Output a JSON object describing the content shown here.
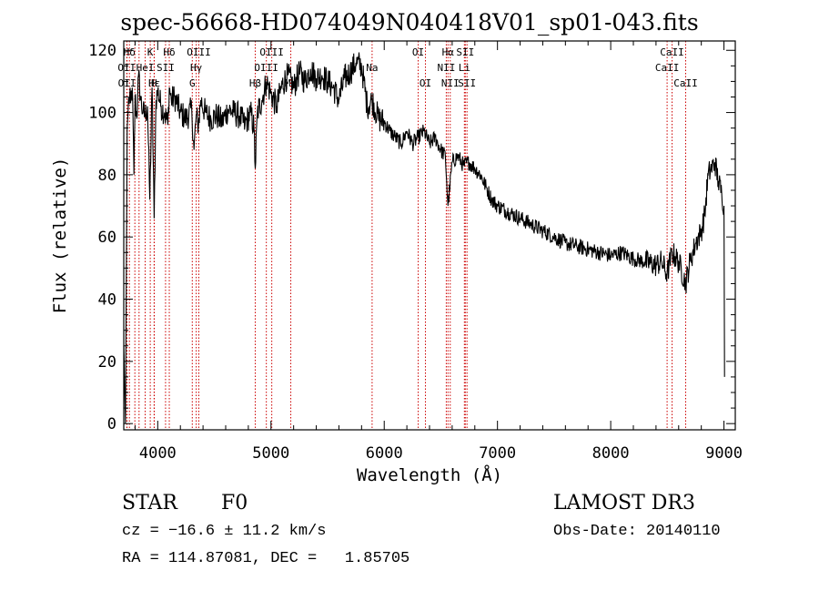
{
  "chart_data": {
    "type": "line",
    "title": "spec-56668-HD074049N040418V01_sp01-043.fits",
    "xlabel": "Wavelength (Å)",
    "ylabel": "Flux (relative)",
    "xlim": [
      3700,
      9100
    ],
    "ylim": [
      -2,
      123
    ],
    "x_ticks": [
      4000,
      5000,
      6000,
      7000,
      8000,
      9000
    ],
    "y_ticks": [
      0,
      20,
      40,
      60,
      80,
      100,
      120
    ],
    "grid": false,
    "series": [
      {
        "x": [
          3700,
          3715,
          3730,
          3745,
          3760,
          3775,
          3790,
          3800,
          3815,
          3830,
          3850,
          3870,
          3890,
          3910,
          3930,
          3950,
          3968,
          3985,
          4000,
          4030,
          4060,
          4090,
          4102,
          4120,
          4150,
          4200,
          4250,
          4300,
          4320,
          4340,
          4360,
          4380,
          4420,
          4470,
          4520,
          4570,
          4620,
          4670,
          4720,
          4770,
          4820,
          4850,
          4861,
          4880,
          4920,
          4960,
          5000,
          5050,
          5100,
          5150,
          5200,
          5250,
          5300,
          5350,
          5400,
          5450,
          5500,
          5550,
          5600,
          5650,
          5700,
          5750,
          5800,
          5850,
          5893,
          5950,
          6000,
          6050,
          6100,
          6150,
          6200,
          6250,
          6300,
          6350,
          6400,
          6450,
          6500,
          6540,
          6563,
          6600,
          6650,
          6700,
          6750,
          6800,
          6850,
          6900,
          6950,
          7000,
          7100,
          7200,
          7300,
          7400,
          7500,
          7600,
          7700,
          7800,
          7900,
          8000,
          8100,
          8200,
          8300,
          8400,
          8450,
          8498,
          8542,
          8600,
          8662,
          8700,
          8750,
          8800,
          8830,
          8860,
          8890,
          8920,
          8950,
          8980,
          9000,
          9005
        ],
        "values": [
          25,
          0,
          95,
          105,
          103,
          108,
          80,
          105,
          98,
          112,
          104,
          100,
          99,
          102,
          72,
          108,
          66,
          104,
          107,
          102,
          100,
          96,
          108,
          104,
          105,
          100,
          98,
          101,
          88,
          99,
          96,
          104,
          100,
          98,
          99,
          97,
          101,
          100,
          99,
          96,
          100,
          95,
          82,
          100,
          104,
          110,
          106,
          102,
          109,
          112,
          108,
          113,
          110,
          114,
          111,
          112,
          110,
          108,
          104,
          111,
          113,
          116,
          115,
          102,
          104,
          98,
          97,
          94,
          92,
          90,
          94,
          90,
          92,
          94,
          90,
          92,
          88,
          86,
          70,
          84,
          86,
          83,
          84,
          82,
          80,
          76,
          72,
          70,
          68,
          66,
          64,
          62,
          60,
          58,
          57,
          56,
          55,
          54,
          55,
          53,
          52,
          51,
          52,
          48,
          55,
          52,
          45,
          52,
          58,
          62,
          67,
          80,
          82,
          84,
          78,
          74,
          70,
          15
        ]
      }
    ],
    "lines": [
      {
        "label": "Hδ",
        "row": 1,
        "x": 3750
      },
      {
        "label": "K",
        "row": 1,
        "x": 3934
      },
      {
        "label": "Hδ",
        "row": 1,
        "x": 4102
      },
      {
        "label": "OIII",
        "row": 1,
        "x": 4363
      },
      {
        "label": "OIII",
        "row": 1,
        "x": 5007
      },
      {
        "label": "OI",
        "row": 1,
        "x": 6300
      },
      {
        "label": "Hα",
        "row": 1,
        "x": 6563
      },
      {
        "label": "SII",
        "row": 1,
        "x": 6716
      },
      {
        "label": "CaII",
        "row": 1,
        "x": 8542
      },
      {
        "label": "OII",
        "row": 2,
        "x": 3727
      },
      {
        "label": "HeI",
        "row": 2,
        "x": 3889
      },
      {
        "label": "SII",
        "row": 2,
        "x": 4069
      },
      {
        "label": "Hγ",
        "row": 2,
        "x": 4340
      },
      {
        "label": "OIII",
        "row": 2,
        "x": 4959
      },
      {
        "label": "Na",
        "row": 2,
        "x": 5893
      },
      {
        "label": "NII",
        "row": 2,
        "x": 6548
      },
      {
        "label": "Li",
        "row": 2,
        "x": 6708
      },
      {
        "label": "CaII",
        "row": 2,
        "x": 8498
      },
      {
        "label": "OII",
        "row": 3,
        "x": 3729
      },
      {
        "label": "Hε",
        "row": 3,
        "x": 3970
      },
      {
        "label": "H",
        "row": 3,
        "x": 3968
      },
      {
        "label": "G",
        "row": 3,
        "x": 4305
      },
      {
        "label": "Hβ",
        "row": 3,
        "x": 4861
      },
      {
        "label": "Mg",
        "row": 3,
        "x": 5175
      },
      {
        "label": "OI",
        "row": 3,
        "x": 6364
      },
      {
        "label": "NII",
        "row": 3,
        "x": 6583
      },
      {
        "label": "SII",
        "row": 3,
        "x": 6731
      },
      {
        "label": "CaII",
        "row": 3,
        "x": 8662
      }
    ],
    "extra_marker_x": [
      3798,
      3835,
      3889,
      3934,
      4102,
      4340,
      4861,
      5007,
      5175,
      5893,
      6300,
      6364,
      6548,
      6563,
      6583,
      6716,
      6731,
      8498,
      8542,
      8662
    ]
  },
  "info": {
    "object_class": "STAR",
    "subclass": "F0",
    "survey": "LAMOST DR3",
    "cz": "cz = −16.6 ± 11.2 km/s",
    "obs_date": "Obs-Date: 20140110",
    "radec": "RA = 114.87081, DEC =   1.85705"
  },
  "colors": {
    "spectrum": "#000000",
    "line_markers": "#cc0000",
    "axes": "#000000"
  }
}
